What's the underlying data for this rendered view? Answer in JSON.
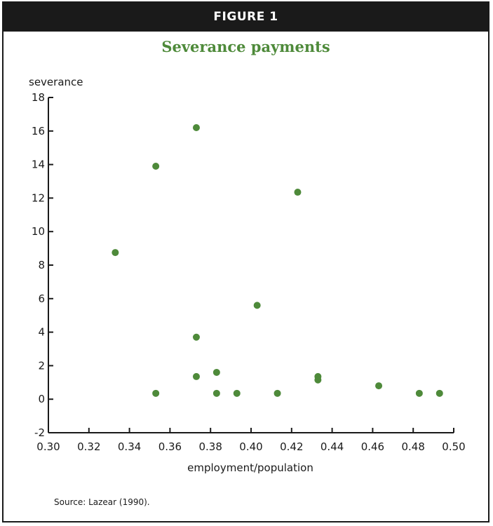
{
  "figure_label": "FIGURE 1",
  "source_note": "Source: Lazear (1990).",
  "colors": {
    "banner": "#1a1a1a",
    "title": "#4e8a3a",
    "points": "#4e8a3a"
  },
  "chart_data": {
    "type": "scatter",
    "title": "Severance payments",
    "xlabel": "employment/population",
    "ylabel": "severance",
    "xlim": [
      0.3,
      0.5
    ],
    "ylim": [
      -2,
      18
    ],
    "x_ticks": [
      "0.30",
      "0.32",
      "0.34",
      "0.36",
      "0.38",
      "0.40",
      "0.42",
      "0.44",
      "0.46",
      "0.48",
      "0.50"
    ],
    "y_ticks": [
      "-2",
      "0",
      "2",
      "4",
      "6",
      "8",
      "10",
      "12",
      "14",
      "16",
      "18"
    ],
    "grid": false,
    "points": [
      {
        "x": 0.333,
        "y": 8.75
      },
      {
        "x": 0.353,
        "y": 13.9
      },
      {
        "x": 0.353,
        "y": 0.35
      },
      {
        "x": 0.373,
        "y": 16.2
      },
      {
        "x": 0.373,
        "y": 3.7
      },
      {
        "x": 0.373,
        "y": 1.35
      },
      {
        "x": 0.383,
        "y": 1.6
      },
      {
        "x": 0.383,
        "y": 0.35
      },
      {
        "x": 0.393,
        "y": 0.35
      },
      {
        "x": 0.403,
        "y": 5.6
      },
      {
        "x": 0.413,
        "y": 0.35
      },
      {
        "x": 0.423,
        "y": 12.35
      },
      {
        "x": 0.433,
        "y": 1.35
      },
      {
        "x": 0.433,
        "y": 1.15
      },
      {
        "x": 0.463,
        "y": 0.8
      },
      {
        "x": 0.483,
        "y": 0.35
      },
      {
        "x": 0.493,
        "y": 0.35
      }
    ]
  }
}
